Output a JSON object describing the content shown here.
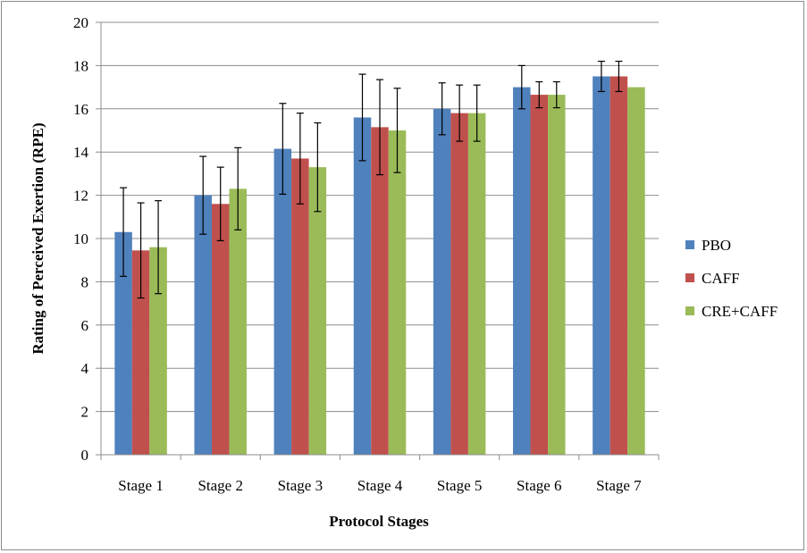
{
  "chart_data": {
    "type": "bar",
    "title": "",
    "xlabel": "Protocol Stages",
    "ylabel": "Rating of Perceived Exertion (RPE)",
    "ylim": [
      0,
      20
    ],
    "yticks": [
      0,
      2,
      4,
      6,
      8,
      10,
      12,
      14,
      16,
      18,
      20
    ],
    "grid": true,
    "legend_position": "right",
    "categories": [
      "Stage 1",
      "Stage 2",
      "Stage 3",
      "Stage 4",
      "Stage 5",
      "Stage 6",
      "Stage 7"
    ],
    "series": [
      {
        "name": "PBO",
        "color": "#4f81bd",
        "values": [
          10.3,
          12.0,
          14.15,
          15.6,
          16.0,
          17.0,
          17.5
        ],
        "errors": [
          2.05,
          1.8,
          2.1,
          2.0,
          1.2,
          1.0,
          0.7
        ]
      },
      {
        "name": "CAFF",
        "color": "#c0504d",
        "values": [
          9.45,
          11.6,
          13.7,
          15.15,
          15.8,
          16.65,
          17.5
        ],
        "errors": [
          2.2,
          1.7,
          2.1,
          2.2,
          1.3,
          0.6,
          0.7
        ]
      },
      {
        "name": "CRE+CAFF",
        "color": "#9bbb59",
        "values": [
          9.6,
          12.3,
          13.3,
          15.0,
          15.8,
          16.65,
          17.0
        ],
        "errors": [
          2.15,
          1.9,
          2.05,
          1.95,
          1.3,
          0.6,
          0.0
        ]
      }
    ]
  }
}
